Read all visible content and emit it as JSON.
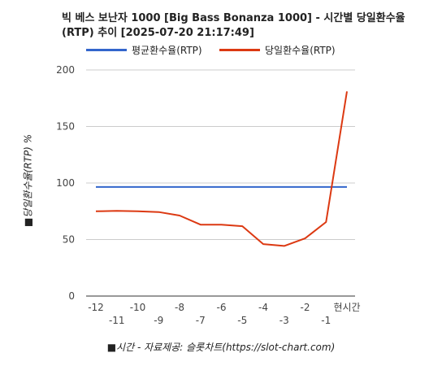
{
  "chart_data": {
    "type": "line",
    "title": "빅 베스 보난자 1000 [Big Bass Bonanza 1000] - 시간별 당일환수율(RTP) 추이 [2025-07-20 21:17:49]",
    "ylabel": "■당일환수율(RTP) %",
    "xlabel": "■시간 - 자료제공: 슬롯차트(https://slot-chart.com)",
    "categories": [
      "-12",
      "-11",
      "-10",
      "-9",
      "-8",
      "-7",
      "-6",
      "-5",
      "-4",
      "-3",
      "-2",
      "-1",
      "현시간"
    ],
    "ylim": [
      0,
      200
    ],
    "yticks": [
      "0",
      "50",
      "100",
      "150",
      "200"
    ],
    "grid": true,
    "legend_position": "top-left",
    "series": [
      {
        "name": "평균환수율(RTP)",
        "color": "#3366cc",
        "values": [
          96.5,
          96.5,
          96.5,
          96.5,
          96.5,
          96.5,
          96.5,
          96.5,
          96.5,
          96.5,
          96.5,
          96.5,
          96.5
        ]
      },
      {
        "name": "당일환수율(RTP)",
        "color": "#dc3912",
        "values": [
          75,
          75.3,
          75,
          74.3,
          71.2,
          63.2,
          63.2,
          61.8,
          46,
          44.3,
          51,
          65.5,
          181
        ]
      }
    ]
  }
}
